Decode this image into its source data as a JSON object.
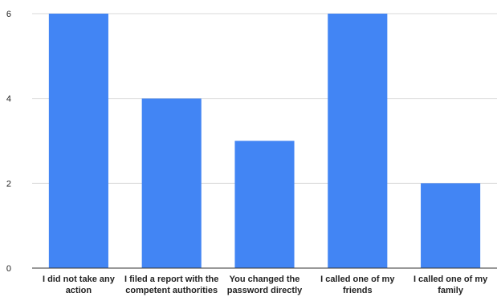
{
  "chart_data": {
    "type": "bar",
    "title": "",
    "xlabel": "",
    "ylabel": "",
    "ylim": [
      0,
      6
    ],
    "yticks": [
      0,
      2,
      4,
      6
    ],
    "grid": true,
    "legend": "none",
    "colors": {
      "bar": "#4285f4",
      "grid": "#d9d9d9",
      "axis": "#333333"
    },
    "categories": [
      [
        "I did not take any",
        "action"
      ],
      [
        "I filed a report with the",
        "competent authorities"
      ],
      [
        "You changed the",
        "password directly"
      ],
      [
        "I called one of my",
        "friends"
      ],
      [
        "I called one of my",
        "family"
      ]
    ],
    "values": [
      6,
      4,
      3,
      6,
      2
    ]
  }
}
